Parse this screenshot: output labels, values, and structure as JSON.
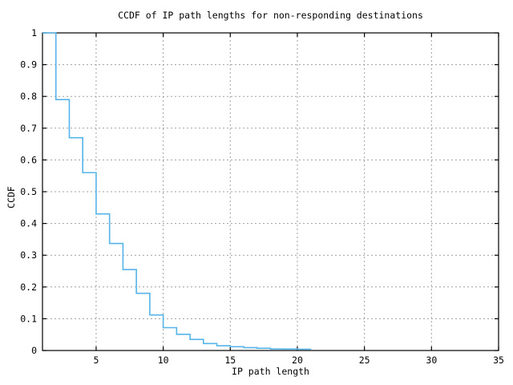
{
  "chart_data": {
    "type": "line",
    "style": "steps",
    "title": "CCDF of IP path lengths for non-responding destinations",
    "xlabel": "IP path length",
    "ylabel": "CCDF",
    "x": [
      1,
      2,
      3,
      4,
      5,
      6,
      7,
      8,
      9,
      10,
      11,
      12,
      13,
      14,
      15,
      16,
      17,
      18,
      19,
      20,
      21
    ],
    "y": [
      1.0,
      0.79,
      0.67,
      0.56,
      0.43,
      0.337,
      0.255,
      0.18,
      0.112,
      0.072,
      0.051,
      0.035,
      0.022,
      0.015,
      0.012,
      0.009,
      0.007,
      0.005,
      0.0045,
      0.004,
      0.003
    ],
    "xlim": [
      1,
      35
    ],
    "ylim": [
      0,
      1
    ],
    "x_ticks": [
      5,
      10,
      15,
      20,
      25,
      30,
      35
    ],
    "y_ticks": [
      {
        "v": 0,
        "label": "0"
      },
      {
        "v": 0.1,
        "label": "0.1"
      },
      {
        "v": 0.2,
        "label": "0.2"
      },
      {
        "v": 0.3,
        "label": "0.3"
      },
      {
        "v": 0.4,
        "label": "0.4"
      },
      {
        "v": 0.5,
        "label": "0.5"
      },
      {
        "v": 0.6,
        "label": "0.6"
      },
      {
        "v": 0.7,
        "label": "0.7"
      },
      {
        "v": 0.8,
        "label": "0.8"
      },
      {
        "v": 0.9,
        "label": "0.9"
      },
      {
        "v": 1,
        "label": "1"
      }
    ],
    "grid": true,
    "legend": "none",
    "line_color": "#56b4e9",
    "grid_color": "#a0a0a0",
    "axis_color": "#000000"
  }
}
